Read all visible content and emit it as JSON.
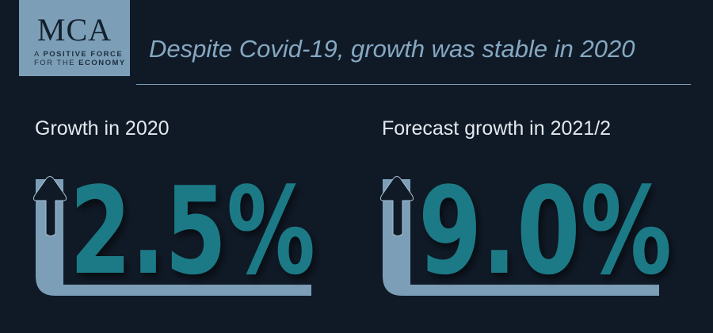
{
  "logo": {
    "name": "MCA",
    "tagline_line1_a": "A ",
    "tagline_line1_b": "POSITIVE FORCE",
    "tagline_line2_a": "FOR THE ",
    "tagline_line2_b": "ECONOMY"
  },
  "header": {
    "title": "Despite Covid-19, growth was stable in 2020"
  },
  "stats": [
    {
      "label": "Growth in 2020",
      "value": "2.5%"
    },
    {
      "label": "Forecast growth in 2021/2",
      "value": "9.0%"
    }
  ],
  "colors": {
    "background": "#101a27",
    "accent": "#1a7a86",
    "bar": "#7c9fb7"
  }
}
